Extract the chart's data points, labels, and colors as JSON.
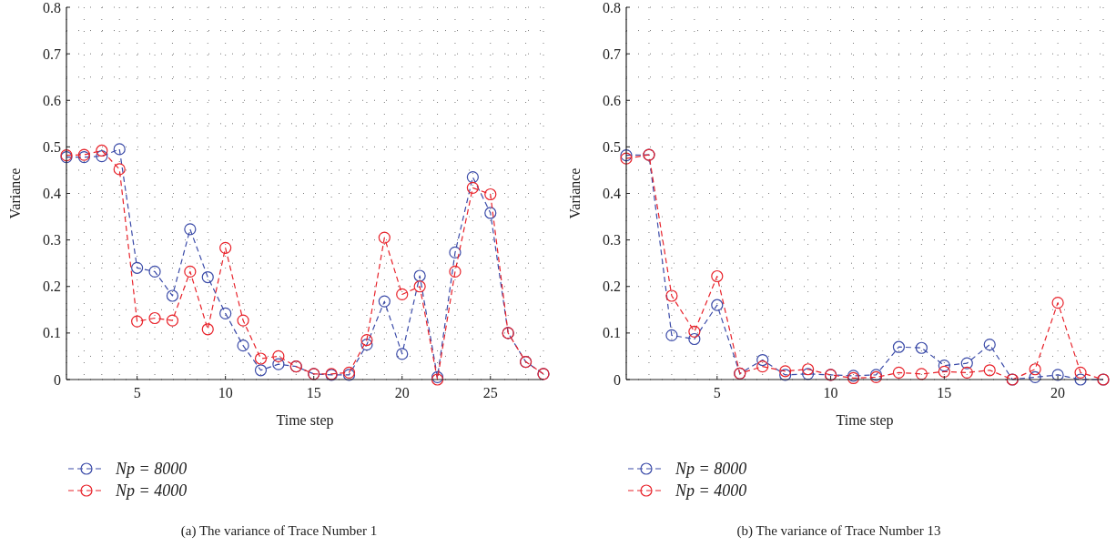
{
  "chart_data": [
    {
      "type": "line",
      "title": "(a)  The variance of Trace Number 1",
      "xlabel": "Time step",
      "ylabel": "Variance",
      "x": [
        1,
        2,
        3,
        4,
        5,
        6,
        7,
        8,
        9,
        10,
        11,
        12,
        13,
        14,
        15,
        16,
        17,
        18,
        19,
        20,
        21,
        22,
        23,
        24,
        25,
        26,
        27,
        28
      ],
      "xlim": [
        1,
        28
      ],
      "xticks": [
        5,
        10,
        15,
        20,
        25
      ],
      "ylim": [
        0,
        0.8
      ],
      "yticks": [
        0,
        0.1,
        0.2,
        0.3,
        0.4,
        0.5,
        0.6,
        0.7,
        0.8
      ],
      "grid": true,
      "legend": "bottom left",
      "marker": "circle",
      "line_style": "dashed",
      "series": [
        {
          "name": "Np = 8000",
          "color": "#3b4ba8",
          "values": [
            0.478,
            0.478,
            0.48,
            0.495,
            0.24,
            0.232,
            0.18,
            0.323,
            0.22,
            0.142,
            0.073,
            0.02,
            0.033,
            0.028,
            0.012,
            0.01,
            0.01,
            0.075,
            0.168,
            0.055,
            0.223,
            0.005,
            0.273,
            0.435,
            0.358,
            0.1,
            0.038,
            0.012
          ]
        },
        {
          "name": "Np = 4000",
          "color": "#e8222a",
          "values": [
            0.482,
            0.483,
            0.492,
            0.452,
            0.125,
            0.132,
            0.127,
            0.232,
            0.108,
            0.283,
            0.127,
            0.045,
            0.05,
            0.028,
            0.012,
            0.012,
            0.015,
            0.085,
            0.305,
            0.183,
            0.2,
            0.0,
            0.232,
            0.412,
            0.398,
            0.1,
            0.038,
            0.012
          ]
        }
      ]
    },
    {
      "type": "line",
      "title": "(b)  The variance of Trace Number 13",
      "xlabel": "Time step",
      "ylabel": "Variance",
      "x": [
        1,
        2,
        3,
        4,
        5,
        6,
        7,
        8,
        9,
        10,
        11,
        12,
        13,
        14,
        15,
        16,
        17,
        18,
        19,
        20,
        21,
        22
      ],
      "xlim": [
        1,
        22
      ],
      "xticks": [
        5,
        10,
        15,
        20
      ],
      "ylim": [
        0,
        0.8
      ],
      "yticks": [
        0,
        0.1,
        0.2,
        0.3,
        0.4,
        0.5,
        0.6,
        0.7,
        0.8
      ],
      "grid": true,
      "legend": "bottom left",
      "marker": "circle",
      "line_style": "dashed",
      "series": [
        {
          "name": "Np = 8000",
          "color": "#3b4ba8",
          "values": [
            0.482,
            0.483,
            0.095,
            0.087,
            0.16,
            0.013,
            0.042,
            0.01,
            0.012,
            0.01,
            0.008,
            0.01,
            0.07,
            0.068,
            0.03,
            0.035,
            0.075,
            0.0,
            0.005,
            0.01,
            0.0,
            0.0
          ]
        },
        {
          "name": "Np = 4000",
          "color": "#e8222a",
          "values": [
            0.475,
            0.483,
            0.18,
            0.103,
            0.222,
            0.013,
            0.028,
            0.018,
            0.022,
            0.01,
            0.003,
            0.005,
            0.015,
            0.012,
            0.017,
            0.015,
            0.02,
            0.0,
            0.022,
            0.165,
            0.015,
            0.0
          ]
        }
      ]
    }
  ]
}
